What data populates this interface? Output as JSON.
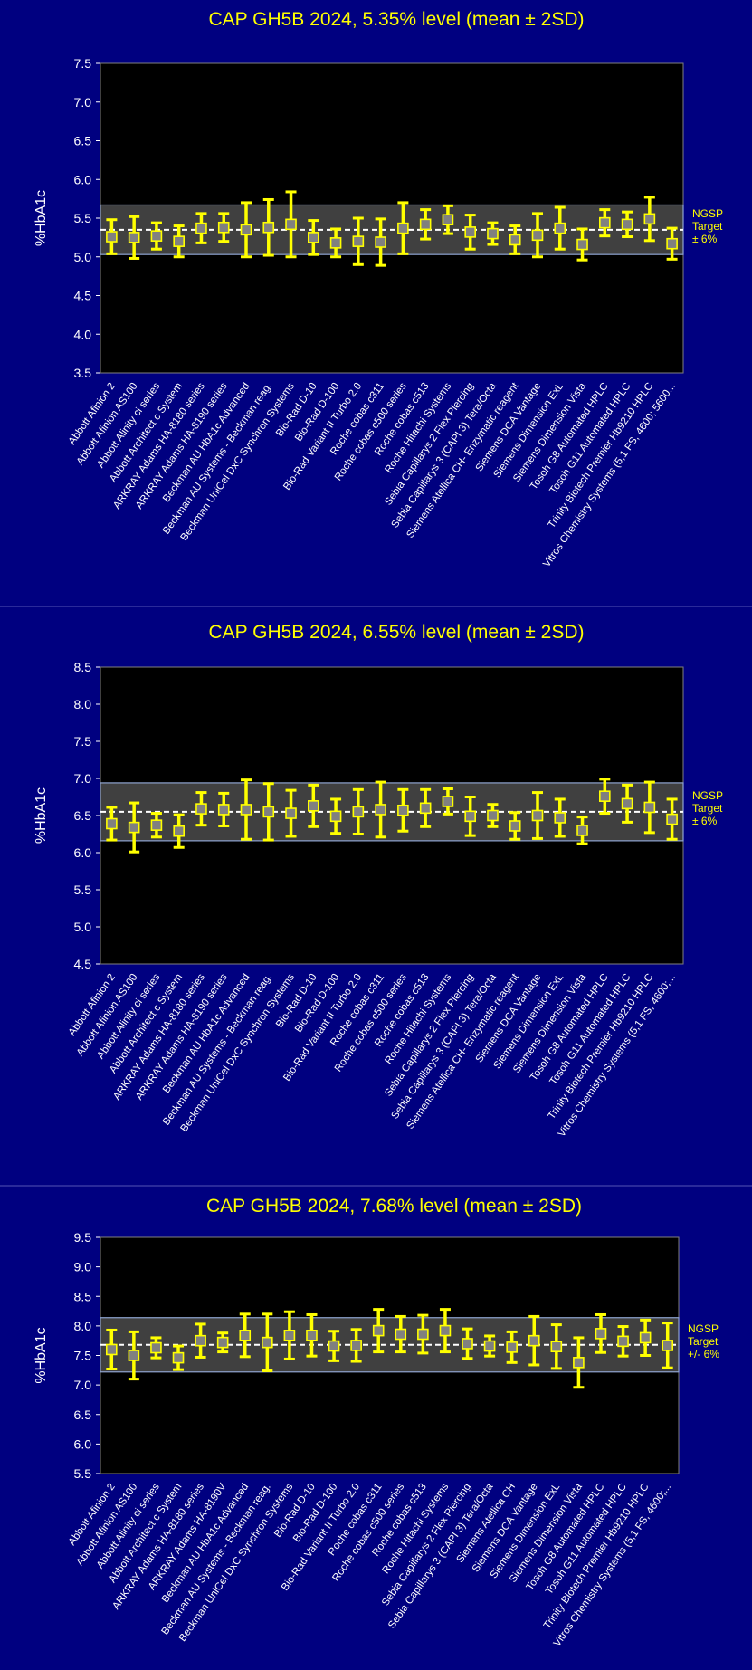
{
  "colors": {
    "background": "#000080",
    "plot_area": "#000000",
    "band": "#404040",
    "band_border": "#8fa4d0",
    "title": "#ffff00",
    "error_bar": "#ffff00",
    "marker": "#808080",
    "axis_text": "#ffffff"
  },
  "chart_data": [
    {
      "type": "errorbar",
      "title": "CAP GH5B 2024, 5.35% level (mean ± 2SD)",
      "ylabel": "%HbA1c",
      "ylim": [
        3.5,
        7.5
      ],
      "yticks": [
        "3.5",
        "4.0",
        "4.5",
        "5.0",
        "5.5",
        "6.0",
        "6.5",
        "7.0",
        "7.5"
      ],
      "target": 5.35,
      "band": [
        5.03,
        5.67
      ],
      "band_label": [
        "NGSP",
        "Target",
        "± 6%"
      ],
      "categories": [
        "Abbott Afinion 2",
        "Abbott Afinion AS100",
        "Abbott Alinity ci series",
        "Abbott Architect c System",
        "ARKRAY Adams HA-8180 series",
        "ARKRAY Adams HA-8190 series",
        "Beckman AU HbA1c Advanced",
        "Beckman AU Systems - Beckman reag.",
        "Beckman UniCel DxC Synchron Systems",
        "Bio-Rad D-10",
        "Bio-Rad D-100",
        "Bio-Rad Variant II Turbo 2.0",
        "Roche cobas c311",
        "Roche cobas c500 series",
        "Roche cobas c513",
        "Roche Hitachi Systems",
        "Sebia Capillarys 2 Flex Piercing",
        "Sebia Capillarys 3 (CAPI 3) Tera/Octa",
        "Siemens Atellica CH- Enzymatic reagent",
        "Siemens DCA Vantage",
        "Siemens Dimension ExL",
        "Siemens Dimension Vista",
        "Tosoh G8 Automated HPLC",
        "Tosoh G11 Automated HPLC",
        "Trinity Biotech Premier Hb9210 HPLC",
        "Vitros Chemistry Systems (5,1 FS, 4600; 5600..."
      ],
      "means": [
        5.26,
        5.25,
        5.27,
        5.2,
        5.37,
        5.38,
        5.35,
        5.38,
        5.42,
        5.25,
        5.18,
        5.2,
        5.19,
        5.37,
        5.42,
        5.48,
        5.32,
        5.3,
        5.22,
        5.28,
        5.37,
        5.16,
        5.44,
        5.42,
        5.49,
        5.17
      ],
      "errors": [
        0.22,
        0.27,
        0.17,
        0.2,
        0.19,
        0.18,
        0.35,
        0.36,
        0.42,
        0.22,
        0.18,
        0.3,
        0.3,
        0.33,
        0.19,
        0.18,
        0.22,
        0.14,
        0.18,
        0.28,
        0.27,
        0.2,
        0.17,
        0.16,
        0.28,
        0.2
      ]
    },
    {
      "type": "errorbar",
      "title": "CAP GH5B 2024, 6.55% level (mean ± 2SD)",
      "ylabel": "%HbA1c",
      "ylim": [
        4.5,
        8.5
      ],
      "yticks": [
        "4.5",
        "5.0",
        "5.5",
        "6.0",
        "6.5",
        "7.0",
        "7.5",
        "8.0",
        "8.5"
      ],
      "target": 6.55,
      "band": [
        6.16,
        6.94
      ],
      "band_label": [
        "NGSP",
        "Target",
        "± 6%"
      ],
      "categories": [
        "Abbott Afinion 2",
        "Abbott Afinion AS100",
        "Abbott Alinity ci series",
        "Abbott Architect c System",
        "ARKRAY Adams HA-8180 series",
        "ARKRAY Adams HA-8190 series",
        "Beckman AU HbA1c Advanced",
        "Beckman AU Systems - Beckman reag.",
        "Beckman UniCel DxC Synchron Systems",
        "Bio-Rad D-10",
        "Bio-Rad D-100",
        "Bio-Rad Variant II Turbo 2.0",
        "Roche cobas c311",
        "Roche cobas c500 series",
        "Roche cobas c513",
        "Roche Hitachi Systems",
        "Sebia Capillarys 2 Flex Piercing",
        "Sebia Capillarys 3 (CAPI 3) Tera/Octa",
        "Siemens Atellica CH- Enzymatic reagent",
        "Siemens DCA Vantage",
        "Siemens Dimension ExL",
        "Siemens Dimension Vista",
        "Tosoh G8 Automated HPLC",
        "Tosoh G11 Automated HPLC",
        "Trinity Biotech Premier Hb9210 HPLC",
        "Vitros Chemistry Systems (5,1 FS, 4600;..."
      ],
      "means": [
        6.39,
        6.34,
        6.37,
        6.29,
        6.59,
        6.58,
        6.58,
        6.55,
        6.53,
        6.63,
        6.49,
        6.55,
        6.58,
        6.57,
        6.6,
        6.69,
        6.49,
        6.5,
        6.36,
        6.5,
        6.47,
        6.3,
        6.76,
        6.66,
        6.61,
        6.45
      ],
      "errors": [
        0.22,
        0.33,
        0.16,
        0.22,
        0.22,
        0.22,
        0.4,
        0.38,
        0.31,
        0.28,
        0.23,
        0.3,
        0.37,
        0.28,
        0.25,
        0.17,
        0.26,
        0.15,
        0.18,
        0.31,
        0.25,
        0.18,
        0.23,
        0.25,
        0.34,
        0.27
      ]
    },
    {
      "type": "errorbar",
      "title": "CAP GH5B 2024, 7.68% level (mean ± 2SD)",
      "ylabel": "%HbA1c",
      "ylim": [
        5.5,
        9.5
      ],
      "yticks": [
        "5.5",
        "6.0",
        "6.5",
        "7.0",
        "7.5",
        "8.0",
        "8.5",
        "9.0",
        "9.5"
      ],
      "target": 7.68,
      "band": [
        7.22,
        8.14
      ],
      "band_label": [
        "NGSP",
        "Target",
        "+/- 6%"
      ],
      "categories": [
        "Abbott Afinion 2",
        "Abbott Afinion AS100",
        "Abbott Alinity ci series",
        "Abbott Architect c System",
        "ARKRAY Adams HA-8180 series",
        "ARKRAY Adams HA-8190V",
        "Beckman AU HbA1c Advanced",
        "Beckman AU Systems - Beckman reag.",
        "Beckman UniCel DxC Synchron Systems",
        "Bio-Rad D-10",
        "Bio-Rad D-100",
        "Bio-Rad Variant II Turbo 2.0",
        "Roche cobas c311",
        "Roche cobas c500 series",
        "Roche cobas c513",
        "Roche Hitachi Systems",
        "Sebia Capillarys 2 Flex Piercing",
        "Sebia Capillarys 3 (CAPI 3) Tera/Octa",
        "Siemens Atellica CH",
        "Siemens DCA Vantage",
        "Siemens Dimension ExL",
        "Siemens Dimension Vista",
        "Tosoh G8 Automated HPLC",
        "Tosoh G11 Automated HPLC",
        "Trinity Biotech Premier Hb9210 HPLC",
        "Vitros Chemistry Systems (5,1 FS, 4600;..."
      ],
      "means": [
        7.6,
        7.5,
        7.63,
        7.46,
        7.75,
        7.72,
        7.84,
        7.72,
        7.84,
        7.84,
        7.66,
        7.67,
        7.92,
        7.86,
        7.86,
        7.92,
        7.7,
        7.66,
        7.64,
        7.75,
        7.65,
        7.38,
        7.87,
        7.74,
        7.8,
        7.67
      ],
      "errors": [
        0.33,
        0.4,
        0.17,
        0.2,
        0.28,
        0.16,
        0.36,
        0.48,
        0.4,
        0.35,
        0.25,
        0.27,
        0.36,
        0.3,
        0.32,
        0.36,
        0.25,
        0.17,
        0.26,
        0.41,
        0.37,
        0.42,
        0.32,
        0.25,
        0.3,
        0.38
      ]
    }
  ]
}
